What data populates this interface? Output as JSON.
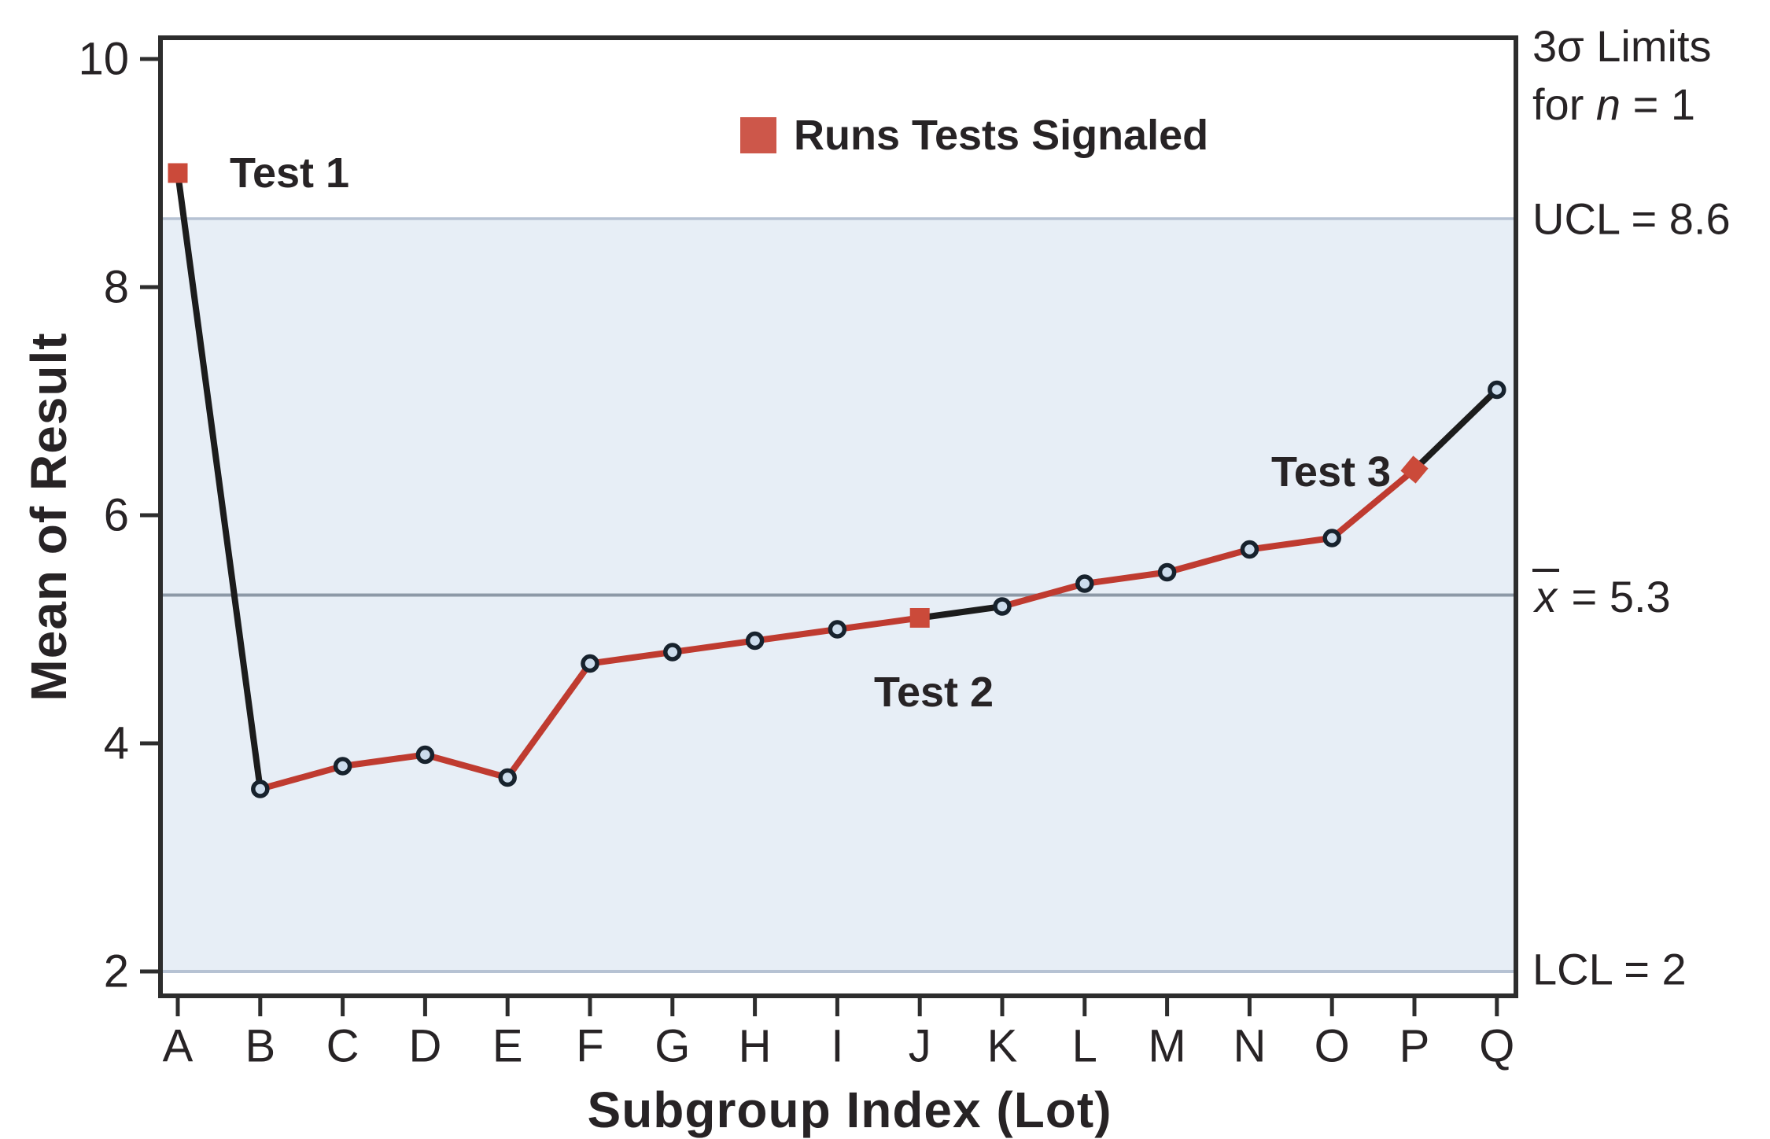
{
  "figure_type": "xbar-control-chart",
  "colors": {
    "band_fill": "#e7eef6",
    "limit_line": "#b6c2d3",
    "center_line": "#8d99a7",
    "series_black": "#1c1c1c",
    "series_red": "#bf3b30",
    "marker_fill": "#ccdcec",
    "marker_stroke": "#17222d",
    "signal_red": "#cb4a3a",
    "legend_red": "#cd574a",
    "spine": "#2d2d2d",
    "text": "#272325"
  },
  "chart_data": {
    "type": "line",
    "title": "",
    "xlabel": "Subgroup Index (Lot)",
    "ylabel": "Mean of Result",
    "categories": [
      "A",
      "B",
      "C",
      "D",
      "E",
      "F",
      "G",
      "H",
      "I",
      "J",
      "K",
      "L",
      "M",
      "N",
      "O",
      "P",
      "Q"
    ],
    "values": [
      9.0,
      3.6,
      3.8,
      3.9,
      3.7,
      4.7,
      4.8,
      4.9,
      5.0,
      5.1,
      5.2,
      5.4,
      5.5,
      5.7,
      5.8,
      6.4,
      7.1
    ],
    "y_ticks": [
      10,
      8,
      6,
      4,
      2
    ],
    "ylim": [
      1.79,
      10.19
    ],
    "grid": "off",
    "legend_position": "top-center-inside",
    "legend_label": "Runs Tests Signaled",
    "ucl": {
      "label": "UCL = 8.6",
      "value": 8.6
    },
    "lcl": {
      "label": "LCL = 2",
      "value": 2
    },
    "center_line": {
      "symbol": "x",
      "suffix": " = 5.3",
      "value": 5.3
    },
    "limits_note": {
      "line1": "3σ Limits",
      "line2_prefix": "for ",
      "line2_var": "n",
      "line2_suffix": " = 1"
    },
    "signaled_points": [
      {
        "index": 0,
        "category": "A",
        "label": "Test 1",
        "value": 9.0,
        "marker_rotation": 0
      },
      {
        "index": 9,
        "category": "J",
        "label": "Test 2",
        "value": 5.1,
        "marker_rotation": 0
      },
      {
        "index": 15,
        "category": "P",
        "label": "Test 3",
        "value": 6.4,
        "marker_rotation": 40
      }
    ],
    "run_segments": [
      {
        "from": 0,
        "to": 1,
        "style": "black"
      },
      {
        "from": 1,
        "to": 9,
        "style": "red"
      },
      {
        "from": 9,
        "to": 10,
        "style": "black"
      },
      {
        "from": 10,
        "to": 15,
        "style": "red"
      },
      {
        "from": 15,
        "to": 16,
        "style": "black"
      }
    ]
  }
}
